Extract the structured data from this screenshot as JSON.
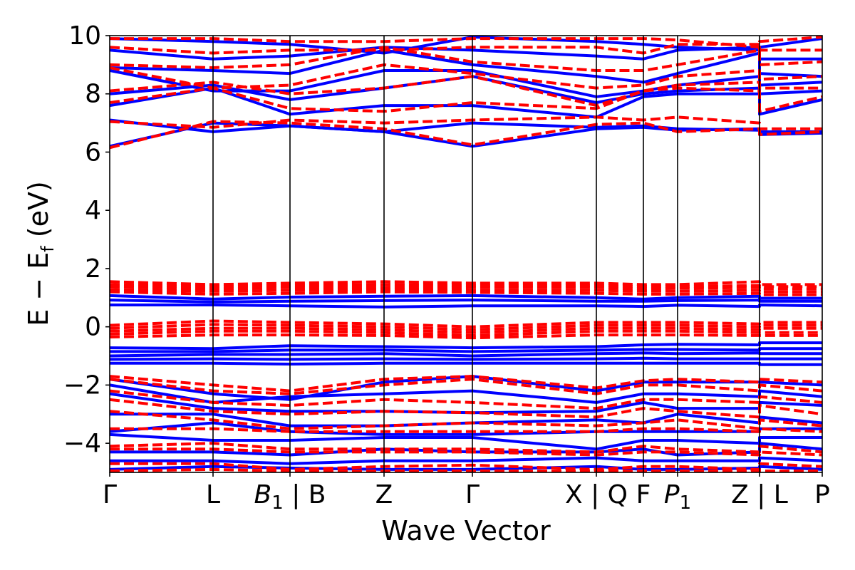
{
  "chart_data": {
    "type": "line",
    "title": "",
    "xlabel": "Wave Vector",
    "ylabel": "E − E_f (eV)",
    "ylabel_main": "E − E",
    "ylabel_sub": "f",
    "ylabel_units": " (eV)",
    "ylim": [
      -5,
      10
    ],
    "yticks": [
      -4,
      -2,
      0,
      2,
      4,
      6,
      8,
      10
    ],
    "ytick_labels": [
      "−4",
      "−2",
      "0",
      "2",
      "4",
      "6",
      "8",
      "10"
    ],
    "xlim": [
      0,
      1
    ],
    "kpoints": [
      {
        "label": "Γ",
        "x": 0.0
      },
      {
        "label": "L",
        "x": 0.145
      },
      {
        "label": "B₁ | B",
        "x": 0.253
      },
      {
        "label": "Z",
        "x": 0.385
      },
      {
        "label": "Γ",
        "x": 0.509
      },
      {
        "label": "X | Q",
        "x": 0.683
      },
      {
        "label": "F",
        "x": 0.749
      },
      {
        "label": "P₁",
        "x": 0.797
      },
      {
        "label": "Z | L",
        "x": 0.912
      },
      {
        "label": "P",
        "x": 1.0
      }
    ],
    "grid": false,
    "legend": "none",
    "series": [
      {
        "style": "solid",
        "color": "#0000ff",
        "x": [
          0,
          0.145,
          0.253,
          0.385,
          0.509,
          0.683,
          0.749,
          0.797,
          0.912,
          0.912,
          1.0
        ],
        "bands": [
          [
            6.2,
            7.0,
            6.9,
            6.7,
            6.2,
            6.8,
            6.85,
            6.75,
            6.8,
            6.7,
            6.7
          ],
          [
            7.1,
            6.7,
            6.9,
            6.7,
            7.0,
            6.85,
            6.9,
            6.8,
            6.75,
            6.6,
            6.65
          ],
          [
            7.6,
            8.2,
            7.3,
            7.6,
            7.6,
            7.2,
            7.9,
            8.0,
            8.0,
            7.3,
            7.8
          ],
          [
            8.0,
            8.3,
            7.8,
            8.2,
            8.6,
            7.7,
            8.0,
            8.1,
            8.2,
            8.0,
            8.1
          ],
          [
            8.8,
            8.1,
            8.1,
            8.8,
            8.8,
            7.9,
            8.1,
            8.3,
            8.6,
            8.3,
            8.4
          ],
          [
            8.9,
            8.8,
            8.7,
            9.5,
            9.0,
            8.6,
            8.4,
            8.7,
            9.4,
            8.7,
            8.6
          ],
          [
            9.5,
            9.2,
            9.3,
            9.6,
            9.5,
            9.3,
            9.2,
            9.5,
            9.6,
            9.2,
            9.2
          ],
          [
            9.9,
            9.8,
            9.7,
            9.4,
            9.95,
            9.8,
            9.7,
            9.6,
            9.5,
            9.6,
            9.9
          ],
          [
            1.07,
            0.95,
            1.02,
            1.05,
            1.07,
            1.0,
            0.95,
            1.0,
            1.05,
            0.98,
            0.98
          ],
          [
            0.92,
            0.85,
            0.88,
            0.9,
            0.92,
            0.88,
            0.88,
            0.9,
            0.92,
            0.88,
            0.88
          ],
          [
            0.75,
            0.75,
            0.72,
            0.68,
            0.72,
            0.72,
            0.7,
            0.74,
            0.7,
            0.75,
            0.72
          ],
          [
            -0.72,
            -0.75,
            -0.65,
            -0.68,
            -0.72,
            -0.68,
            -0.62,
            -0.6,
            -0.62,
            -0.55,
            -0.55
          ],
          [
            -0.85,
            -0.85,
            -0.8,
            -0.8,
            -0.85,
            -0.8,
            -0.78,
            -0.78,
            -0.8,
            -0.75,
            -0.75
          ],
          [
            -1.0,
            -0.95,
            -0.95,
            -0.92,
            -1.0,
            -0.92,
            -0.9,
            -0.92,
            -0.9,
            -0.92,
            -0.92
          ],
          [
            -1.12,
            -1.1,
            -1.12,
            -1.1,
            -1.12,
            -1.1,
            -1.08,
            -1.1,
            -1.1,
            -1.1,
            -1.1
          ],
          [
            -1.25,
            -1.25,
            -1.28,
            -1.25,
            -1.25,
            -1.25,
            -1.25,
            -1.25,
            -1.25,
            -1.3,
            -1.3
          ],
          [
            -1.8,
            -2.3,
            -2.5,
            -1.9,
            -1.7,
            -2.2,
            -1.9,
            -1.9,
            -1.9,
            -1.9,
            -2.0
          ],
          [
            -2.0,
            -2.6,
            -2.4,
            -2.3,
            -2.2,
            -2.6,
            -2.3,
            -2.3,
            -2.4,
            -2.2,
            -2.4
          ],
          [
            -2.3,
            -2.8,
            -2.9,
            -2.9,
            -2.95,
            -2.9,
            -2.6,
            -2.8,
            -2.8,
            -2.6,
            -2.7
          ],
          [
            -3.0,
            -3.0,
            -3.4,
            -3.4,
            -3.3,
            -3.2,
            -3.3,
            -3.0,
            -3.3,
            -3.1,
            -3.3
          ],
          [
            -3.6,
            -3.3,
            -3.6,
            -3.7,
            -3.7,
            -3.6,
            -3.6,
            -3.6,
            -3.6,
            -3.5,
            -3.5
          ],
          [
            -3.7,
            -3.9,
            -3.9,
            -3.8,
            -3.8,
            -4.2,
            -3.9,
            -3.9,
            -4.0,
            -3.8,
            -3.8
          ],
          [
            -4.3,
            -4.3,
            -4.4,
            -4.2,
            -4.3,
            -4.3,
            -4.2,
            -4.4,
            -4.3,
            -4.0,
            -4.2
          ],
          [
            -4.6,
            -4.6,
            -4.7,
            -4.6,
            -4.6,
            -4.5,
            -4.6,
            -4.6,
            -4.6,
            -4.5,
            -4.6
          ],
          [
            -4.9,
            -4.8,
            -4.85,
            -4.9,
            -4.9,
            -4.8,
            -4.9,
            -4.9,
            -4.85,
            -4.8,
            -4.9
          ]
        ]
      },
      {
        "style": "dashed",
        "color": "#ff0000",
        "x": [
          0,
          0.145,
          0.253,
          0.385,
          0.509,
          0.683,
          0.749,
          0.797,
          0.912,
          0.912,
          1.0
        ],
        "bands": [
          [
            6.15,
            7.05,
            7.0,
            6.8,
            6.25,
            6.95,
            7.0,
            6.7,
            6.8,
            6.8,
            6.8
          ],
          [
            7.05,
            6.85,
            7.1,
            7.0,
            7.1,
            7.2,
            7.1,
            7.2,
            7.0,
            6.6,
            6.7
          ],
          [
            7.7,
            8.2,
            7.5,
            7.4,
            7.7,
            7.5,
            8.1,
            8.2,
            8.1,
            7.4,
            7.9
          ],
          [
            8.1,
            8.4,
            8.0,
            8.2,
            8.6,
            7.6,
            8.1,
            8.3,
            8.4,
            8.2,
            8.2
          ],
          [
            8.9,
            8.2,
            8.3,
            9.0,
            8.7,
            8.2,
            8.3,
            8.6,
            8.8,
            8.5,
            8.6
          ],
          [
            9.0,
            8.9,
            9.0,
            9.6,
            9.1,
            8.8,
            8.8,
            9.0,
            9.5,
            9.0,
            9.1
          ],
          [
            9.6,
            9.4,
            9.5,
            9.5,
            9.6,
            9.6,
            9.4,
            9.7,
            9.7,
            9.5,
            9.5
          ],
          [
            9.9,
            9.9,
            9.8,
            9.8,
            9.9,
            9.9,
            9.9,
            9.85,
            9.6,
            9.8,
            9.95
          ],
          [
            1.55,
            1.45,
            1.5,
            1.55,
            1.5,
            1.5,
            1.45,
            1.45,
            1.55,
            1.45,
            1.45
          ],
          [
            1.45,
            1.38,
            1.42,
            1.45,
            1.42,
            1.42,
            1.38,
            1.38,
            1.42,
            1.38,
            1.38
          ],
          [
            1.38,
            1.3,
            1.35,
            1.35,
            1.35,
            1.35,
            1.3,
            1.32,
            1.35,
            1.3,
            1.3
          ],
          [
            1.28,
            1.22,
            1.25,
            1.28,
            1.25,
            1.25,
            1.22,
            1.22,
            1.25,
            1.2,
            1.2
          ],
          [
            1.2,
            1.12,
            1.15,
            1.2,
            1.18,
            1.15,
            1.12,
            1.12,
            1.15,
            1.1,
            1.1
          ],
          [
            0.05,
            0.2,
            0.15,
            0.1,
            0.0,
            0.15,
            0.15,
            0.15,
            0.1,
            0.15,
            0.15
          ],
          [
            -0.05,
            0.08,
            0.05,
            0.0,
            -0.1,
            0.05,
            0.05,
            0.05,
            0.0,
            0.05,
            0.05
          ],
          [
            -0.15,
            -0.05,
            -0.05,
            -0.1,
            -0.2,
            -0.05,
            -0.05,
            -0.05,
            -0.1,
            -0.05,
            -0.05
          ],
          [
            -0.25,
            -0.15,
            -0.15,
            -0.2,
            -0.3,
            -0.15,
            -0.15,
            -0.15,
            -0.2,
            -0.2,
            -0.2
          ],
          [
            -0.35,
            -0.28,
            -0.28,
            -0.3,
            -0.38,
            -0.28,
            -0.28,
            -0.28,
            -0.3,
            -0.3,
            -0.3
          ],
          [
            -1.7,
            -2.0,
            -2.2,
            -1.8,
            -1.7,
            -2.1,
            -1.85,
            -1.8,
            -1.9,
            -1.8,
            -1.9
          ],
          [
            -1.8,
            -2.2,
            -2.3,
            -2.0,
            -1.8,
            -2.3,
            -2.0,
            -2.0,
            -2.2,
            -2.0,
            -2.2
          ],
          [
            -2.2,
            -2.6,
            -2.7,
            -2.5,
            -2.6,
            -2.8,
            -2.5,
            -2.5,
            -2.6,
            -2.4,
            -2.6
          ],
          [
            -2.5,
            -2.9,
            -3.0,
            -2.9,
            -2.95,
            -3.1,
            -2.8,
            -2.9,
            -3.1,
            -2.7,
            -3.0
          ],
          [
            -2.9,
            -3.2,
            -3.5,
            -3.4,
            -3.3,
            -3.4,
            -3.3,
            -3.2,
            -3.5,
            -3.2,
            -3.4
          ],
          [
            -3.5,
            -3.5,
            -3.6,
            -3.6,
            -3.6,
            -3.6,
            -3.5,
            -3.5,
            -3.6,
            -3.5,
            -3.6
          ],
          [
            -4.1,
            -4.0,
            -4.2,
            -4.2,
            -4.2,
            -4.3,
            -4.1,
            -4.2,
            -4.3,
            -4.1,
            -4.3
          ],
          [
            -4.2,
            -4.2,
            -4.3,
            -4.3,
            -4.3,
            -4.4,
            -4.3,
            -4.3,
            -4.4,
            -4.3,
            -4.4
          ],
          [
            -4.7,
            -4.7,
            -4.9,
            -4.8,
            -4.75,
            -4.9,
            -4.8,
            -4.8,
            -4.9,
            -4.7,
            -4.8
          ],
          [
            -4.95,
            -4.9,
            -4.95,
            -4.95,
            -4.95,
            -4.95,
            -4.95,
            -4.95,
            -4.95,
            -4.95,
            -4.95
          ]
        ]
      }
    ]
  }
}
